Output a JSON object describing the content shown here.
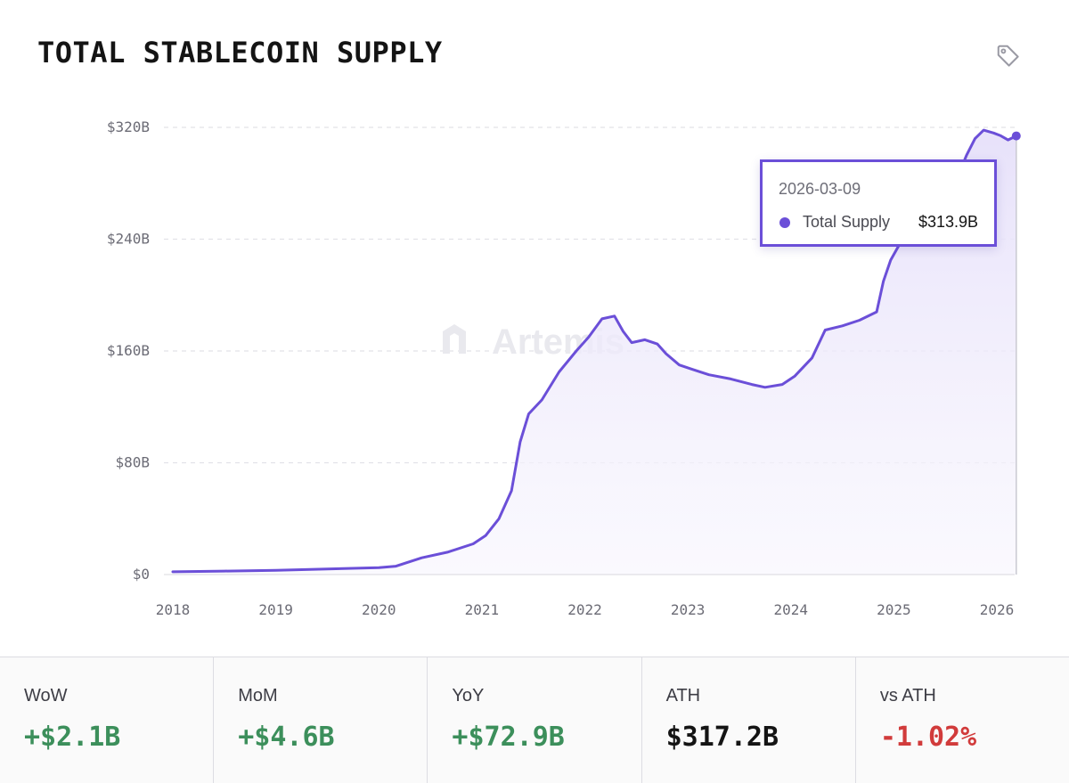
{
  "title": "TOTAL STABLECOIN SUPPLY",
  "icons": {
    "tag": "tag-icon",
    "watermark": "artemis-logo-icon"
  },
  "colors": {
    "line": "#6b4fd8",
    "area": "#ede9fb",
    "positive": "#3c8f5b",
    "negative": "#d13b3b",
    "neutral": "#141414"
  },
  "watermark": "Artemis",
  "chart_data": {
    "type": "area",
    "title": "TOTAL STABLECOIN SUPPLY",
    "xlabel": "",
    "ylabel": "",
    "x_ticks": [
      "2018",
      "2019",
      "2020",
      "2021",
      "2022",
      "2023",
      "2024",
      "2025",
      "2026"
    ],
    "y_ticks": [
      "$0",
      "$80B",
      "$160B",
      "$240B",
      "$320B"
    ],
    "ylim": [
      0,
      320
    ],
    "xlim": [
      "2018-01-01",
      "2026-03-09"
    ],
    "grid": "horizontal dashed",
    "series": [
      {
        "name": "Total Supply",
        "x": [
          "2018-01-01",
          "2018-07-01",
          "2019-01-01",
          "2019-07-01",
          "2020-01-01",
          "2020-03-01",
          "2020-06-01",
          "2020-09-01",
          "2020-12-01",
          "2021-01-15",
          "2021-03-01",
          "2021-04-15",
          "2021-05-15",
          "2021-06-15",
          "2021-08-01",
          "2021-10-01",
          "2021-12-01",
          "2022-01-15",
          "2022-03-01",
          "2022-04-15",
          "2022-05-15",
          "2022-06-15",
          "2022-08-01",
          "2022-09-15",
          "2022-10-15",
          "2022-12-01",
          "2023-01-15",
          "2023-03-15",
          "2023-06-01",
          "2023-08-15",
          "2023-10-01",
          "2023-12-01",
          "2024-01-15",
          "2024-03-15",
          "2024-05-01",
          "2024-07-01",
          "2024-09-01",
          "2024-11-01",
          "2024-11-25",
          "2024-12-20",
          "2025-02-01",
          "2025-04-01",
          "2025-06-01",
          "2025-08-01",
          "2025-09-15",
          "2025-10-15",
          "2025-11-15",
          "2025-12-20",
          "2026-01-15",
          "2026-02-10",
          "2026-03-09"
        ],
        "y": [
          2,
          2.5,
          3,
          4,
          5,
          6,
          12,
          16,
          22,
          28,
          40,
          60,
          95,
          115,
          125,
          145,
          160,
          170,
          183,
          185,
          174,
          166,
          168,
          165,
          158,
          150,
          147,
          143,
          140,
          136,
          134,
          136,
          142,
          155,
          175,
          178,
          182,
          188,
          210,
          225,
          240,
          250,
          262,
          278,
          300,
          312,
          318,
          316,
          314,
          311,
          313.9
        ]
      }
    ],
    "tooltip": {
      "date": "2026-03-09",
      "series": "Total Supply",
      "value": "$313.9B"
    }
  },
  "stats": [
    {
      "label": "WoW",
      "value": "+$2.1B",
      "tone": "positive"
    },
    {
      "label": "MoM",
      "value": "+$4.6B",
      "tone": "positive"
    },
    {
      "label": "YoY",
      "value": "+$72.9B",
      "tone": "positive"
    },
    {
      "label": "ATH",
      "value": "$317.2B",
      "tone": "neutral"
    },
    {
      "label": "vs ATH",
      "value": "-1.02%",
      "tone": "negative"
    }
  ]
}
